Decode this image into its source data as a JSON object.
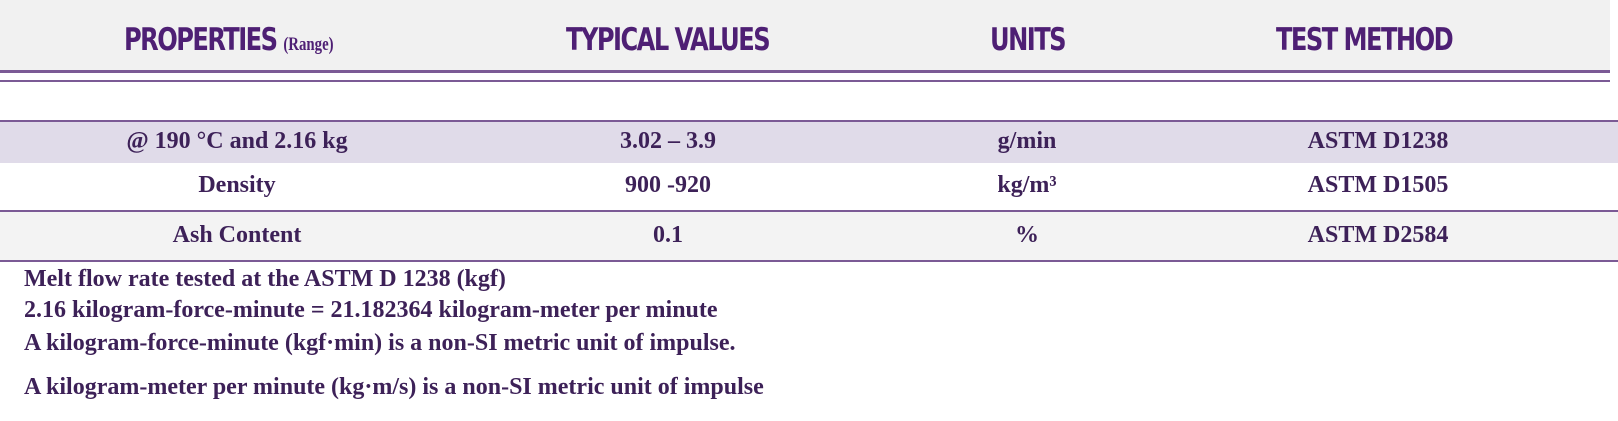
{
  "table": {
    "headers": {
      "properties": "PROPERTIES",
      "properties_range": "(Range)",
      "typical_values": "TYPICAL VALUES",
      "units": "UNITS",
      "test_method": "TEST METHOD"
    },
    "rows": [
      {
        "property": "@ 190 °C and 2.16 kg",
        "value": "3.02 – 3.9",
        "unit": "g/min",
        "method": "ASTM D1238"
      },
      {
        "property": "Density",
        "value": "900 -920",
        "unit": "kg/m³",
        "method": "ASTM D1505"
      },
      {
        "property": "Ash Content",
        "value": "0.1",
        "unit": "%",
        "method": "ASTM D2584"
      }
    ]
  },
  "notes": [
    "Melt flow rate tested at the ASTM D 1238 (kgf)",
    "2.16 kilogram-force-minute = 21.182364 kilogram-meter per minute",
    "A kilogram-force-minute (kgf·min) is a non-SI metric unit of impulse.",
    "A kilogram-meter per minute (kg·m/s) is a non-SI metric unit of impulse"
  ],
  "colors": {
    "header_text": "#4e1f74",
    "body_text": "#3d2158",
    "rule": "#7b5a95",
    "header_band": "#f1f1f1",
    "highlight_row": "#e0dbe9",
    "light_row": "#f3f3f3"
  }
}
